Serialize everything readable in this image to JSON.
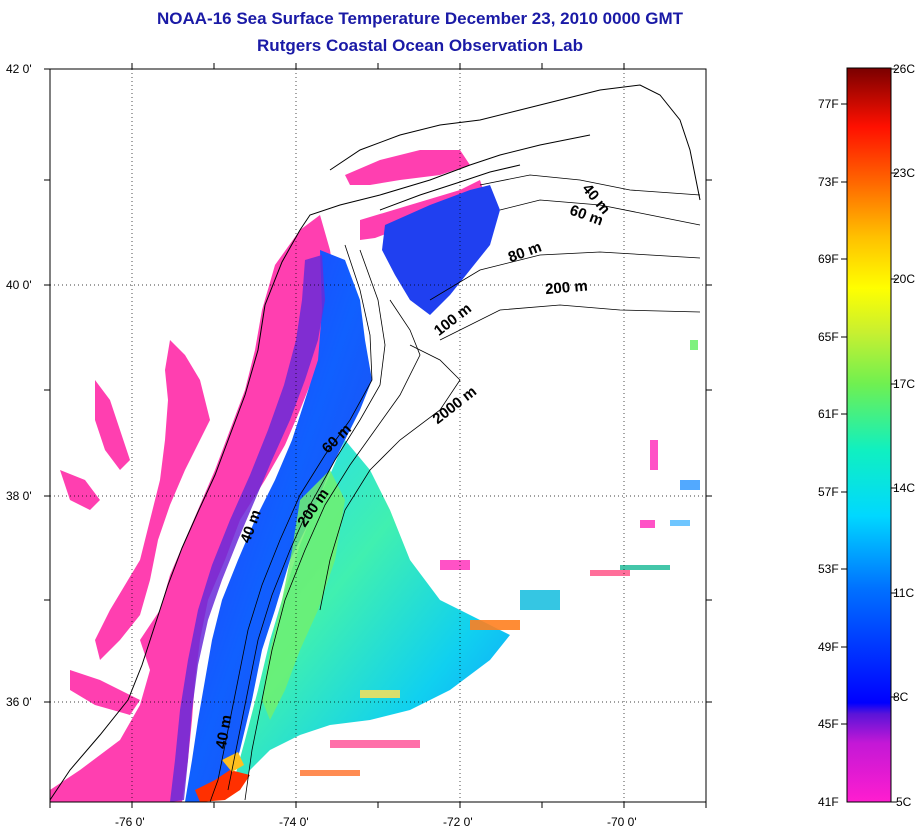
{
  "title": {
    "line1": "NOAA-16 Sea Surface Temperature December 23, 2010 0000 GMT",
    "line2": "Rutgers Coastal Ocean Observation Lab"
  },
  "map": {
    "lat_labels": [
      "42 0'",
      "40 0'",
      "38 0'",
      "36 0'"
    ],
    "lon_labels": [
      "-76 0'",
      "-74 0'",
      "-72 0'",
      "-70 0'"
    ],
    "depth_contours": [
      "40 m",
      "60 m",
      "80 m",
      "200 m",
      "100 m",
      "2000 m",
      "60 m",
      "200 m",
      "40 m",
      "40 m"
    ],
    "land_color": "#ffffff",
    "cold_color": "#ff3fb0"
  },
  "colorbar": {
    "fahrenheit": [
      "77F",
      "73F",
      "69F",
      "65F",
      "61F",
      "57F",
      "53F",
      "49F",
      "45F",
      "41F"
    ],
    "celsius": [
      "26C",
      "23C",
      "20C",
      "17C",
      "14C",
      "11C",
      "8C",
      "5C"
    ]
  }
}
